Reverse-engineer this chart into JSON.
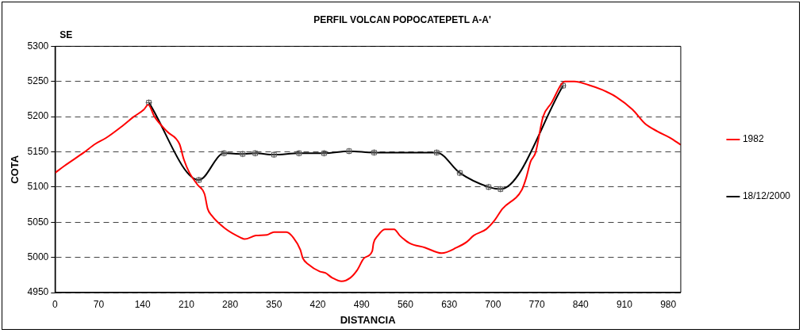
{
  "chart_data": {
    "type": "line",
    "title": "PERFIL VOLCAN POPOCATEPETL A-A'",
    "xlabel": "DISTANCIA",
    "ylabel": "COTA",
    "annotations": [
      "SE"
    ],
    "xlim": [
      0,
      1000
    ],
    "xticks": [
      0,
      70,
      140,
      210,
      280,
      350,
      420,
      490,
      560,
      630,
      700,
      770,
      840,
      910,
      980
    ],
    "ylim": [
      4950,
      5300
    ],
    "yticks": [
      4950,
      5000,
      5050,
      5100,
      5150,
      5200,
      5250,
      5300
    ],
    "grid": "y",
    "legend": "right",
    "line_style": "solid",
    "series": [
      {
        "name": "1982",
        "color": "#ff0000",
        "marker": "none",
        "x": [
          0,
          15,
          46,
          64,
          82,
          108,
          126,
          142,
          149,
          159,
          179,
          199,
          206,
          215,
          228,
          239,
          244,
          250,
          272,
          297,
          303,
          321,
          339,
          350,
          370,
          381,
          392,
          396,
          405,
          423,
          432,
          443,
          458,
          472,
          483,
          494,
          507,
          509,
          516,
          527,
          542,
          551,
          567,
          591,
          618,
          642,
          658,
          669,
          689,
          702,
          715,
          746,
          753,
          760,
          768,
          780,
          793,
          815,
          830,
          853,
          875,
          897,
          923,
          943,
          963,
          983,
          1000
        ],
        "values": [
          5120,
          5130,
          5149,
          5161,
          5170,
          5187,
          5200,
          5210,
          5217,
          5200,
          5179,
          5161,
          5139,
          5120,
          5103,
          5090,
          5069,
          5060,
          5041,
          5028,
          5026,
          5031,
          5032,
          5036,
          5036,
          5028,
          5011,
          4999,
          4990,
          4980,
          4978,
          4971,
          4966,
          4971,
          4982,
          4999,
          5009,
          5020,
          5031,
          5040,
          5040,
          5031,
          5020,
          5014,
          5006,
          5014,
          5022,
          5031,
          5040,
          5052,
          5069,
          5096,
          5113,
          5136,
          5149,
          5200,
          5219,
          5250,
          5250,
          5245,
          5238,
          5228,
          5210,
          5190,
          5179,
          5170,
          5160
        ]
      },
      {
        "name": "18/12/2000",
        "color": "#000000",
        "marker": "square",
        "x": [
          150,
          230,
          270,
          300,
          320,
          350,
          390,
          430,
          470,
          510,
          610,
          647,
          693,
          712,
          812
        ],
        "values": [
          5220,
          5110,
          5148,
          5147,
          5148,
          5146,
          5148,
          5148,
          5151,
          5149,
          5149,
          5120,
          5100,
          5097,
          5244
        ]
      }
    ]
  }
}
